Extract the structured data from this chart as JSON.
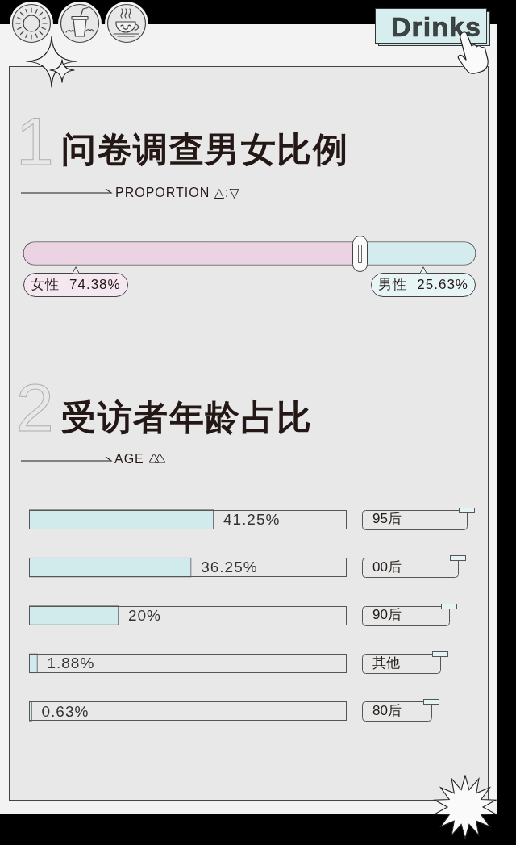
{
  "chart_data": [
    {
      "type": "bar",
      "orientation": "horizontal",
      "stacked": true,
      "title": "问卷调查男女比例",
      "subtitle": "PROPORTION △:▽",
      "categories": [
        null
      ],
      "tick_labels": false,
      "series": [
        {
          "name": "女性",
          "color": "#ecd3e3",
          "values": [
            74.38
          ],
          "value_labels": [
            "74.38%"
          ]
        },
        {
          "name": "男性",
          "color": "#d5ecee",
          "values": [
            25.63
          ],
          "value_labels": [
            "25.63%"
          ]
        }
      ],
      "annotations": [
        "Drinks",
        "1"
      ]
    },
    {
      "type": "bar",
      "orientation": "horizontal",
      "title": "受访者年龄占比",
      "subtitle": "AGE",
      "categories": [
        "95后",
        "00后",
        "90后",
        "其他",
        "80后"
      ],
      "values": [
        41.25,
        36.25,
        20,
        1.88,
        0.63
      ],
      "value_labels": [
        "41.25%",
        "36.25%",
        "20%",
        "1.88%",
        "0.63%"
      ],
      "color": "#d1eaec",
      "xlim": [
        0,
        71
      ],
      "tick_labels": "y",
      "annotations": [
        "2"
      ]
    }
  ]
}
